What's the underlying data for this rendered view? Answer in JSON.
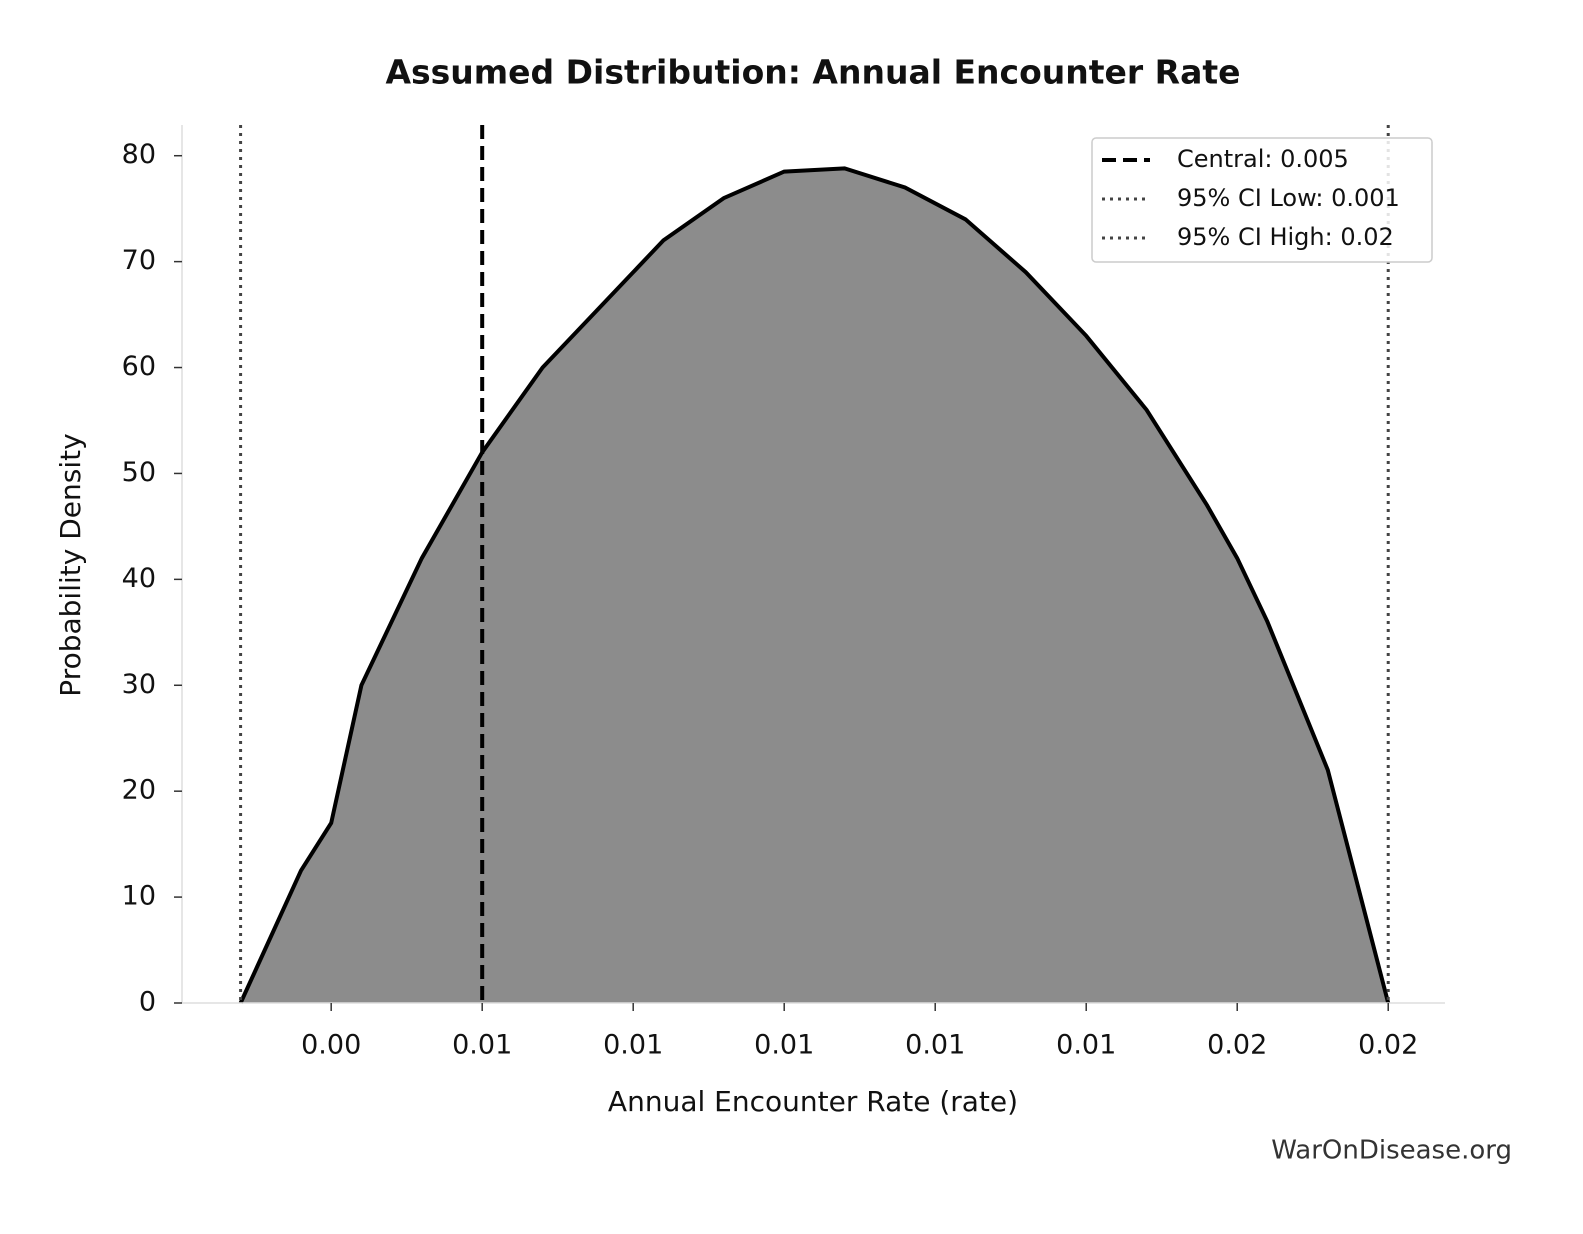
{
  "chart_data": {
    "type": "area",
    "title": "Assumed Distribution: Annual Encounter Rate",
    "xlabel": "Annual Encounter Rate (rate)",
    "ylabel": "Probability Density",
    "watermark": "WarOnDisease.org",
    "x": [
      0.001,
      0.002,
      0.0025,
      0.003,
      0.004,
      0.005,
      0.006,
      0.007,
      0.008,
      0.009,
      0.01,
      0.011,
      0.012,
      0.013,
      0.014,
      0.015,
      0.016,
      0.017,
      0.0175,
      0.018,
      0.019,
      0.02
    ],
    "series": [
      {
        "name": "density",
        "color": "#000000",
        "fill": "#8c8c8c",
        "values": [
          0,
          12.5,
          17,
          30,
          42,
          52,
          60,
          66,
          72,
          76,
          78.5,
          78.8,
          77,
          74,
          69,
          63,
          56,
          47,
          42,
          36,
          22,
          0
        ]
      }
    ],
    "vlines": [
      {
        "name": "Central: 0.005",
        "value": 0.005,
        "style": "dashed",
        "color": "#000000"
      },
      {
        "name": "95% CI Low: 0.001",
        "value": 0.001,
        "style": "dotted",
        "color": "#444444"
      },
      {
        "name": "95% CI High: 0.02",
        "value": 0.02,
        "style": "dotted",
        "color": "#444444"
      }
    ],
    "xlim": [
      3e-05,
      0.02094
    ],
    "xticks": [
      {
        "value": 0.0025,
        "label": "0.00"
      },
      {
        "value": 0.005,
        "label": "0.01"
      },
      {
        "value": 0.0075,
        "label": "0.01"
      },
      {
        "value": 0.01,
        "label": "0.01"
      },
      {
        "value": 0.0125,
        "label": "0.01"
      },
      {
        "value": 0.015,
        "label": "0.01"
      },
      {
        "value": 0.0175,
        "label": "0.02"
      },
      {
        "value": 0.02,
        "label": "0.02"
      }
    ],
    "ylim": [
      0,
      82.9
    ],
    "yticks": [
      0,
      10,
      20,
      30,
      40,
      50,
      60,
      70,
      80
    ],
    "legend": "upper right",
    "grid": false
  }
}
